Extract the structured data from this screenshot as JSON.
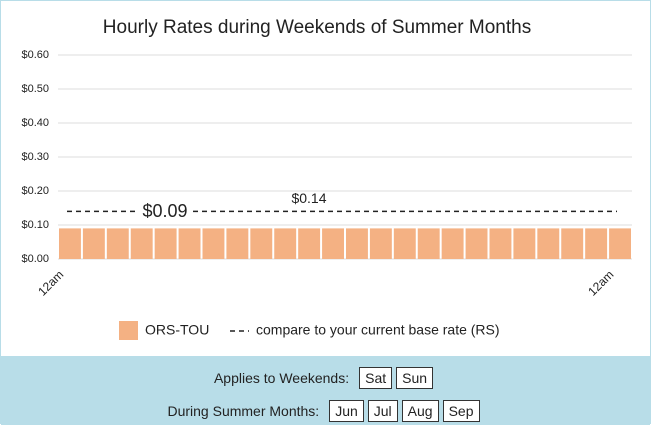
{
  "chart_data": {
    "type": "bar",
    "title": "Hourly Rates during Weekends of Summer Months",
    "categories": [
      "12am",
      null,
      null,
      null,
      null,
      null,
      null,
      null,
      null,
      null,
      null,
      null,
      null,
      null,
      null,
      null,
      null,
      null,
      null,
      null,
      null,
      null,
      null,
      "12am"
    ],
    "series": [
      {
        "name": "ORS-TOU",
        "color": "#f4b183",
        "values": [
          0.09,
          0.09,
          0.09,
          0.09,
          0.09,
          0.09,
          0.09,
          0.09,
          0.09,
          0.09,
          0.09,
          0.09,
          0.09,
          0.09,
          0.09,
          0.09,
          0.09,
          0.09,
          0.09,
          0.09,
          0.09,
          0.09,
          0.09,
          0.09
        ]
      }
    ],
    "reference_line": {
      "name": "compare to your current base rate (RS)",
      "value": 0.14,
      "label": "$0.14",
      "color": "#222222"
    },
    "annotations": [
      {
        "text": "$0.09"
      }
    ],
    "ylim": [
      0,
      0.6
    ],
    "yticks": [
      {
        "value": 0,
        "label": "$0.00"
      },
      {
        "value": 0.1,
        "label": "$0.10"
      },
      {
        "value": 0.2,
        "label": "$0.20"
      },
      {
        "value": 0.3,
        "label": "$0.30"
      },
      {
        "value": 0.4,
        "label": "$0.40"
      },
      {
        "value": 0.5,
        "label": "$0.50"
      },
      {
        "value": 0.6,
        "label": "$0.60"
      }
    ],
    "grid": true
  },
  "filters": {
    "weekends": {
      "label": "Applies to Weekends:",
      "options": [
        "Sat",
        "Sun"
      ]
    },
    "months": {
      "label": "During Summer Months:",
      "options": [
        "Jun",
        "Jul",
        "Aug",
        "Sep"
      ]
    }
  }
}
